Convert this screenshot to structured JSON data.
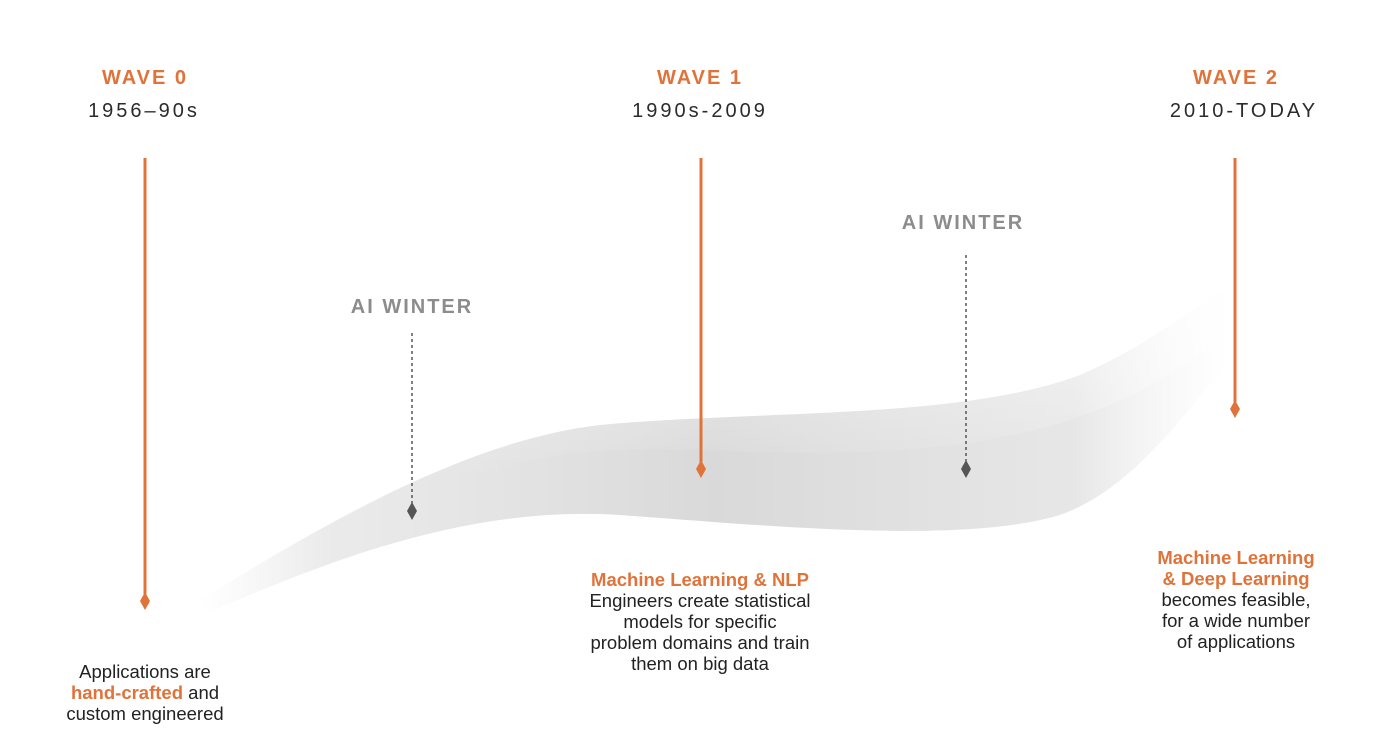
{
  "accent_color": "#e0733a",
  "winter_color": "#8c8c8c",
  "waves": [
    {
      "title": "WAVE 0",
      "period": "1956–90s",
      "desc_prefix": "Applications are",
      "desc_highlight": "hand-crafted",
      "desc_after_highlight": " and",
      "desc_suffix": "custom engineered"
    },
    {
      "title": "WAVE 1",
      "period": "1990s-2009",
      "desc_title": "Machine Learning & NLP",
      "desc_lines": [
        "Engineers create statistical",
        "models for specific",
        "problem domains and train",
        "them on big data"
      ]
    },
    {
      "title": "WAVE 2",
      "period": "2010-TODAY",
      "desc_title_lines": [
        "Machine Learning",
        "& Deep Learning"
      ],
      "desc_lines": [
        "becomes feasible,",
        "for a wide number",
        "of applications"
      ]
    }
  ],
  "winters": [
    {
      "label": "AI WINTER"
    },
    {
      "label": "AI WINTER"
    }
  ]
}
